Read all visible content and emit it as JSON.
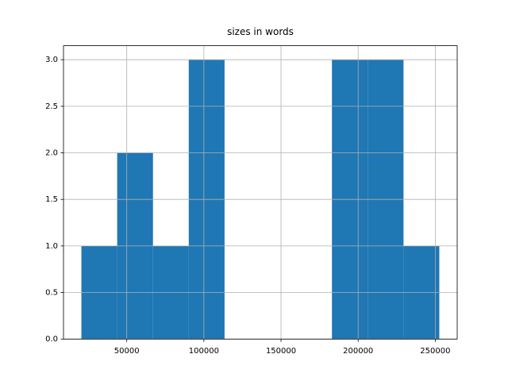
{
  "chart_data": {
    "type": "histogram",
    "title": "sizes in words",
    "bins": [
      20600,
      43800,
      67000,
      90200,
      113400,
      136600,
      159800,
      183000,
      206200,
      229400,
      252600
    ],
    "counts": [
      1,
      2,
      1,
      3,
      0,
      0,
      0,
      3,
      3,
      1
    ],
    "color": "#1f77b4",
    "xlim": [
      9000,
      264200
    ],
    "xticks": [
      50000,
      100000,
      150000,
      200000,
      250000
    ],
    "ylim": [
      0,
      3.15
    ],
    "yticks": [
      {
        "value": 0,
        "label": "0.0"
      },
      {
        "value": 0.5,
        "label": "0.5"
      },
      {
        "value": 1,
        "label": "1.0"
      },
      {
        "value": 1.5,
        "label": "1.5"
      },
      {
        "value": 2,
        "label": "2.0"
      },
      {
        "value": 2.5,
        "label": "2.5"
      },
      {
        "value": 3,
        "label": "3.0"
      }
    ],
    "grid": true
  }
}
